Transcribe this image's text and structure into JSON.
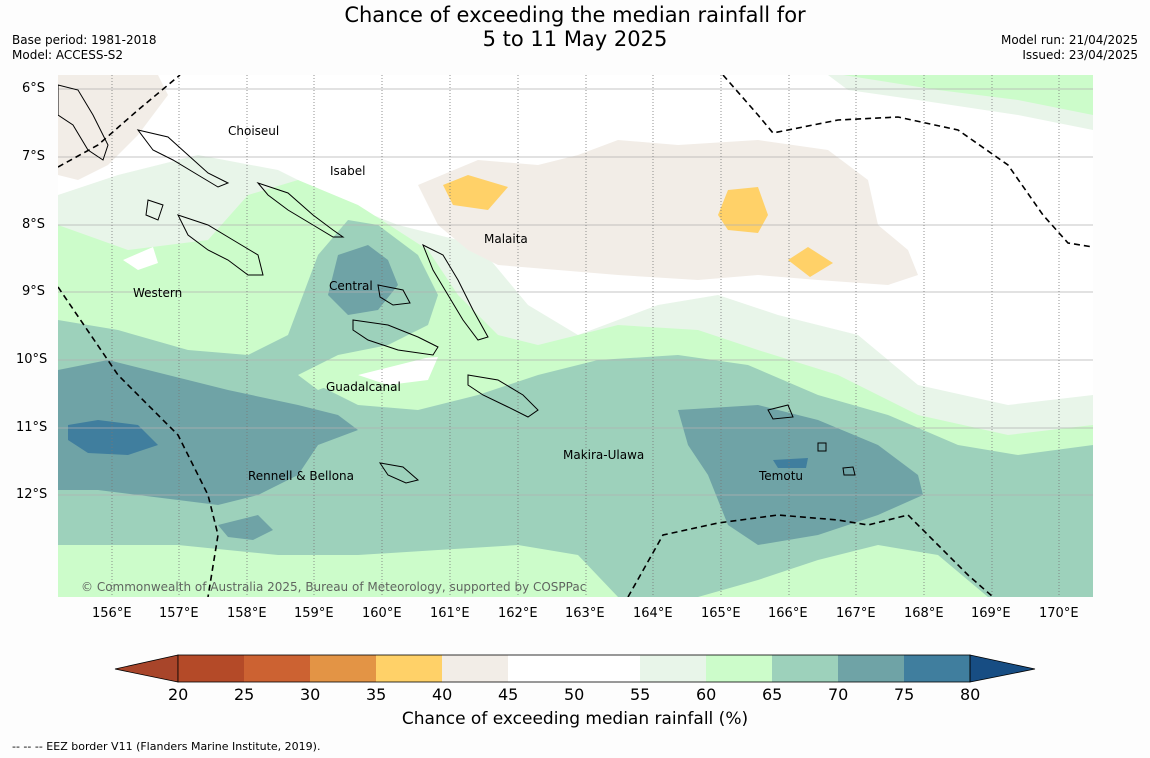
{
  "title": {
    "line1": "Chance of exceeding the median rainfall for",
    "line2": "5 to 11 May 2025"
  },
  "meta_left": {
    "base_period": "Base period: 1981-2018",
    "model": "Model: ACCESS-S2"
  },
  "meta_right": {
    "model_run": "Model run: 21/04/2025",
    "issued": "Issued: 23/04/2025"
  },
  "copyright": "© Commonwealth of Australia 2025, Bureau of Meteorology, supported by COSPPac",
  "map": {
    "lon_range": [
      155.2,
      170.5
    ],
    "lat_range": [
      -13.5,
      -5.8
    ],
    "lon_ticks": [
      "156°E",
      "157°E",
      "158°E",
      "159°E",
      "160°E",
      "161°E",
      "162°E",
      "163°E",
      "164°E",
      "165°E",
      "166°E",
      "167°E",
      "168°E",
      "169°E",
      "170°E"
    ],
    "lat_ticks": [
      "6°S",
      "7°S",
      "8°S",
      "9°S",
      "10°S",
      "11°S",
      "12°S"
    ],
    "places": [
      {
        "name": "Choiseul",
        "lon": 157.2,
        "lat": -6.6
      },
      {
        "name": "Isabel",
        "lon": 159.0,
        "lat": -7.2
      },
      {
        "name": "Malaita",
        "lon": 161.0,
        "lat": -8.2
      },
      {
        "name": "Western",
        "lon": 156.3,
        "lat": -9.0
      },
      {
        "name": "Central",
        "lon": 159.2,
        "lat": -8.9
      },
      {
        "name": "Guadalcanal",
        "lon": 159.2,
        "lat": -10.4
      },
      {
        "name": "Makira-Ulawa",
        "lon": 162.6,
        "lat": -11.4
      },
      {
        "name": "Rennell & Bellona",
        "lon": 158.0,
        "lat": -11.7
      },
      {
        "name": "Temotu",
        "lon": 165.6,
        "lat": -11.7
      }
    ]
  },
  "colorbar": {
    "labels": [
      "20",
      "25",
      "30",
      "35",
      "40",
      "45",
      "50",
      "55",
      "60",
      "65",
      "70",
      "75",
      "80"
    ],
    "colors": [
      "#a8452a",
      "#b44a28",
      "#cc6232",
      "#e39445",
      "#ffd168",
      "#f2ede7",
      "#ffffff",
      "#ffffff",
      "#e8f5e9",
      "#ccfcca",
      "#9dd1bb",
      "#6fa3a6",
      "#407e9e",
      "#174d83"
    ],
    "label": "Chance of exceeding median rainfall (%)"
  },
  "footer": "--  --  -- EEZ border V11 (Flanders Marine Institute, 2019)."
}
